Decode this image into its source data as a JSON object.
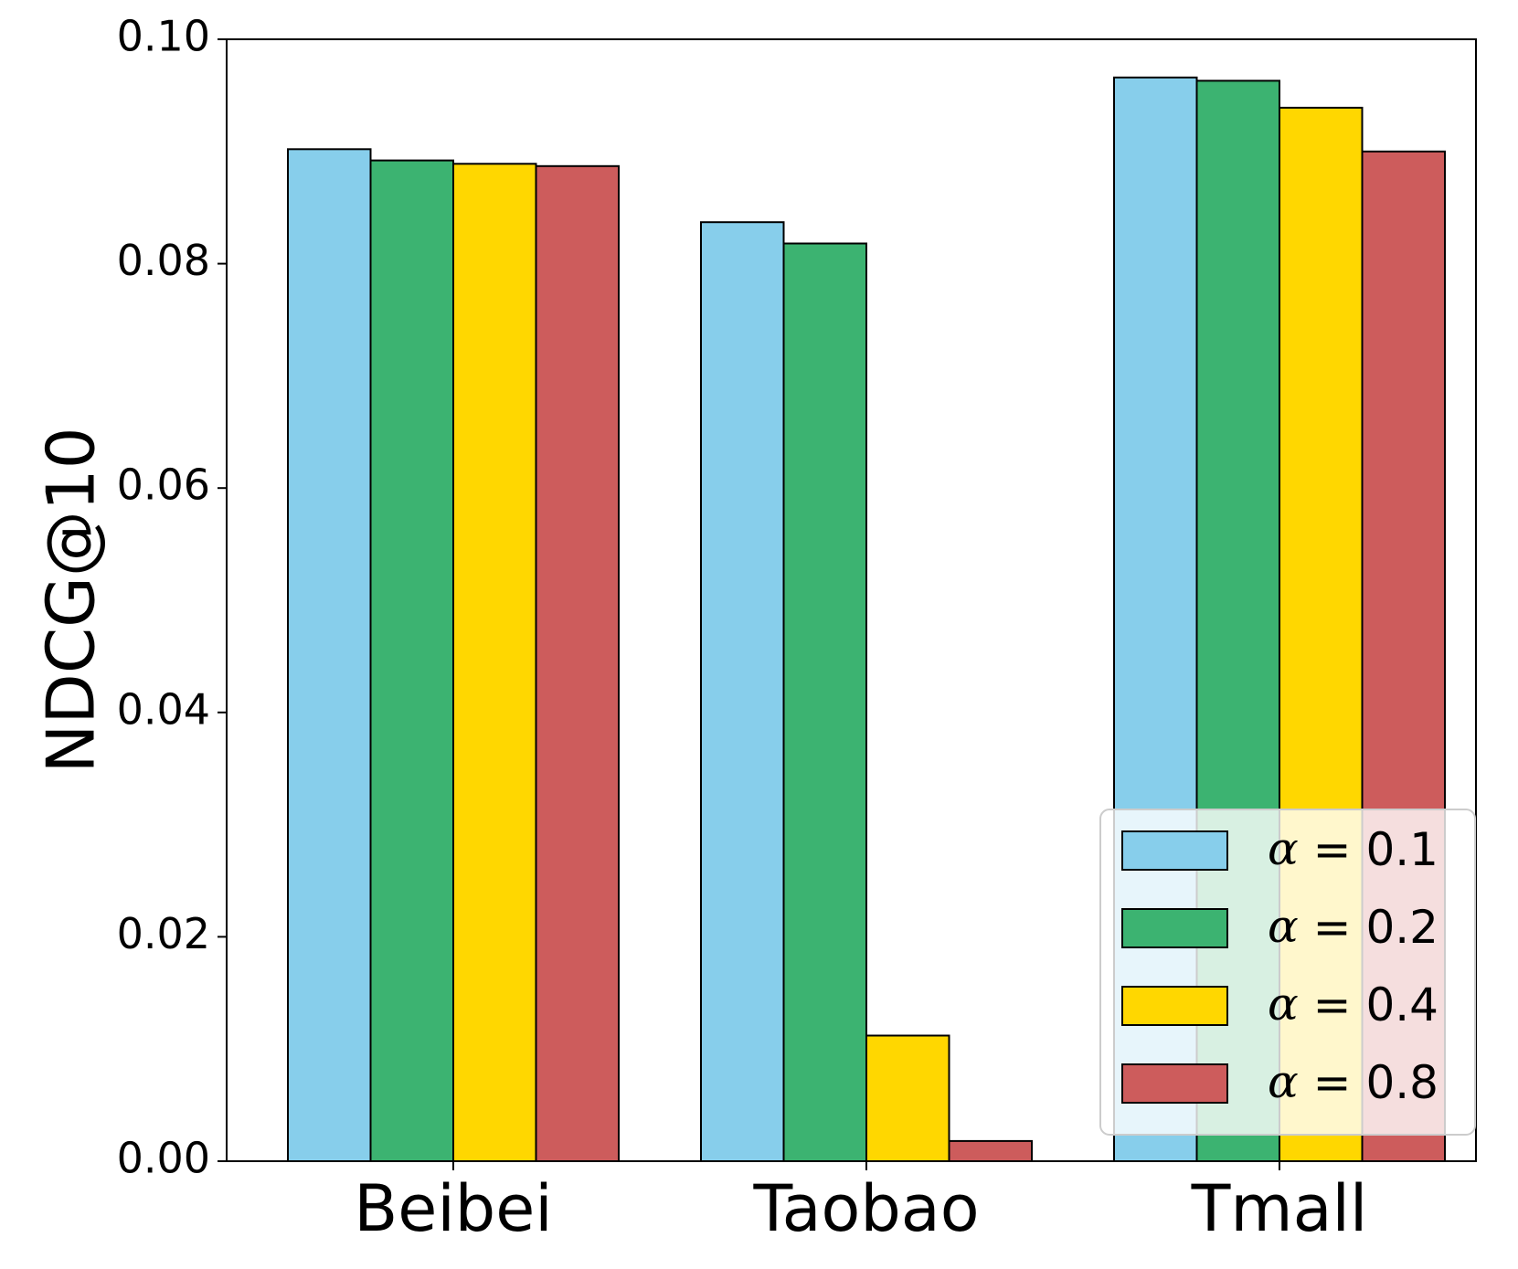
{
  "chart_data": {
    "type": "bar",
    "title": "",
    "xlabel": "",
    "ylabel": "NDCG@10",
    "categories": [
      "Beibei",
      "Taobao",
      "Tmall"
    ],
    "ylim": [
      0,
      0.1
    ],
    "yticks": [
      "0.00",
      "0.02",
      "0.04",
      "0.06",
      "0.08",
      "0.10"
    ],
    "ytick_values": [
      0,
      0.02,
      0.04,
      0.06,
      0.08,
      0.1
    ],
    "grid": false,
    "legend_position": "bottom-right",
    "series": [
      {
        "name": "α = 0.1",
        "legend_symbol": "α",
        "legend_value": "= 0.1",
        "color": "#87CEEB",
        "values": [
          0.0902,
          0.0837,
          0.0966
        ]
      },
      {
        "name": "α = 0.2",
        "legend_symbol": "α",
        "legend_value": "= 0.2",
        "color": "#3CB371",
        "values": [
          0.0892,
          0.0818,
          0.0963
        ]
      },
      {
        "name": "α = 0.4",
        "legend_symbol": "α",
        "legend_value": "= 0.4",
        "color": "#FFD700",
        "values": [
          0.0889,
          0.0112,
          0.0939
        ]
      },
      {
        "name": "α = 0.8",
        "legend_symbol": "α",
        "legend_value": "= 0.8",
        "color": "#CD5C5C",
        "values": [
          0.0887,
          0.0018,
          0.09
        ]
      }
    ]
  }
}
